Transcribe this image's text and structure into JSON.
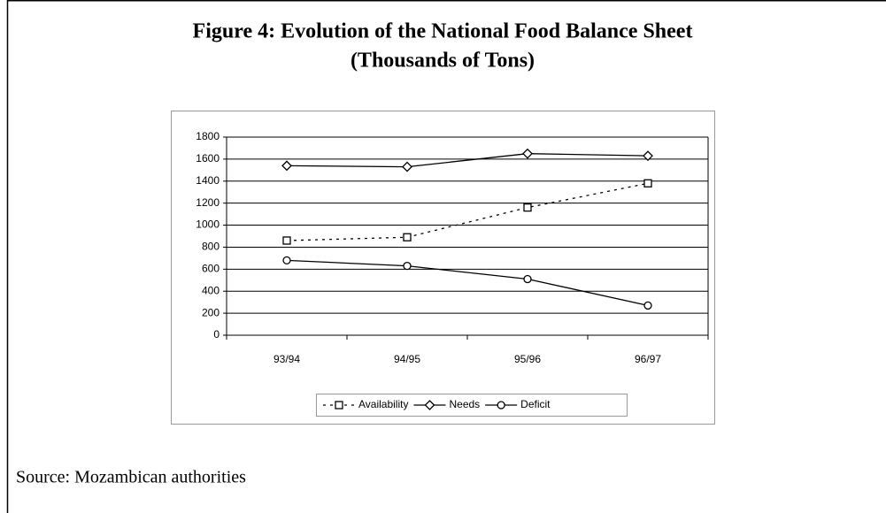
{
  "chart_data": {
    "type": "line",
    "title": "Figure 4: Evolution of the National Food Balance Sheet",
    "subtitle": "(Thousands of Tons)",
    "categories": [
      "93/94",
      "94/95",
      "95/96",
      "96/97"
    ],
    "series": [
      {
        "name": "Availability",
        "color": "#000000",
        "dash": "dotted",
        "marker": "square",
        "values": [
          860,
          890,
          1160,
          1380
        ]
      },
      {
        "name": "Needs",
        "color": "#000000",
        "dash": "solid",
        "marker": "diamond",
        "values": [
          1540,
          1530,
          1650,
          1630
        ]
      },
      {
        "name": "Deficit",
        "color": "#000000",
        "dash": "solid",
        "marker": "circle",
        "values": [
          680,
          630,
          510,
          270
        ]
      }
    ],
    "ylim": [
      0,
      1800
    ],
    "yticks": [
      0,
      200,
      400,
      600,
      800,
      1000,
      1200,
      1400,
      1600,
      1800
    ],
    "grid": true,
    "legend": "bottom",
    "source": "Source: Mozambican authorities"
  }
}
